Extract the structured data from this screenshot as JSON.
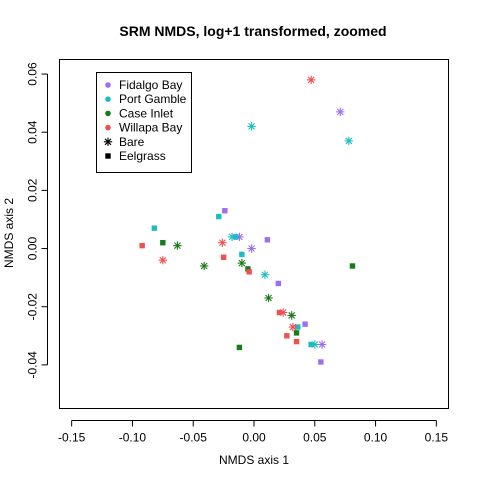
{
  "chart_data": {
    "type": "scatter",
    "title": "SRM NMDS, log+1 transformed, zoomed",
    "xlabel": "NMDS axis 1",
    "ylabel": "NMDS axis 2",
    "xlim": [
      -0.16,
      0.16
    ],
    "ylim": [
      -0.055,
      0.065
    ],
    "x_ticks": [
      -0.15,
      -0.1,
      -0.05,
      0.0,
      0.05,
      0.1,
      0.15
    ],
    "x_tick_labels": [
      "-0.15",
      "-0.10",
      "-0.05",
      "0.00",
      "0.05",
      "0.10",
      "0.15"
    ],
    "y_ticks": [
      -0.04,
      -0.02,
      0.0,
      0.02,
      0.04,
      0.06
    ],
    "y_tick_labels": [
      "-0.04",
      "-0.02",
      "0.00",
      "0.02",
      "0.04",
      "0.06"
    ],
    "grid": false,
    "legend_position": "top-left",
    "legend": {
      "sites": [
        {
          "label": "Fidalgo Bay",
          "color": "#9f6ef0"
        },
        {
          "label": "Port Gamble",
          "color": "#1cbcc4"
        },
        {
          "label": "Case Inlet",
          "color": "#197a1b"
        },
        {
          "label": "Willapa Bay",
          "color": "#ef5050"
        }
      ],
      "habitats": [
        {
          "label": "Bare",
          "marker": "asterisk"
        },
        {
          "label": "Eelgrass",
          "marker": "square"
        }
      ]
    },
    "series": [
      {
        "name": "Fidalgo Bay",
        "color": "#9f6ef0",
        "points": [
          {
            "x": 0.071,
            "y": 0.047,
            "marker": "asterisk"
          },
          {
            "x": -0.012,
            "y": 0.004,
            "marker": "asterisk"
          },
          {
            "x": -0.002,
            "y": 0.0,
            "marker": "asterisk"
          },
          {
            "x": 0.056,
            "y": -0.033,
            "marker": "asterisk"
          },
          {
            "x": -0.024,
            "y": 0.013,
            "marker": "square"
          },
          {
            "x": 0.011,
            "y": 0.003,
            "marker": "square"
          },
          {
            "x": 0.02,
            "y": -0.012,
            "marker": "square"
          },
          {
            "x": 0.042,
            "y": -0.026,
            "marker": "square"
          },
          {
            "x": 0.055,
            "y": -0.039,
            "marker": "square"
          }
        ]
      },
      {
        "name": "Port Gamble",
        "color": "#1cbcc4",
        "points": [
          {
            "x": -0.002,
            "y": 0.042,
            "marker": "asterisk"
          },
          {
            "x": 0.078,
            "y": 0.037,
            "marker": "asterisk"
          },
          {
            "x": -0.018,
            "y": 0.004,
            "marker": "asterisk"
          },
          {
            "x": 0.009,
            "y": -0.009,
            "marker": "asterisk"
          },
          {
            "x": 0.05,
            "y": -0.033,
            "marker": "asterisk"
          },
          {
            "x": -0.082,
            "y": 0.007,
            "marker": "square"
          },
          {
            "x": -0.029,
            "y": 0.011,
            "marker": "square"
          },
          {
            "x": -0.015,
            "y": 0.004,
            "marker": "square"
          },
          {
            "x": -0.01,
            "y": -0.002,
            "marker": "square"
          },
          {
            "x": 0.036,
            "y": -0.027,
            "marker": "square"
          },
          {
            "x": 0.047,
            "y": -0.033,
            "marker": "square"
          }
        ]
      },
      {
        "name": "Case Inlet",
        "color": "#197a1b",
        "points": [
          {
            "x": -0.063,
            "y": 0.001,
            "marker": "asterisk"
          },
          {
            "x": -0.041,
            "y": -0.006,
            "marker": "asterisk"
          },
          {
            "x": -0.01,
            "y": -0.005,
            "marker": "asterisk"
          },
          {
            "x": 0.012,
            "y": -0.017,
            "marker": "asterisk"
          },
          {
            "x": 0.031,
            "y": -0.023,
            "marker": "asterisk"
          },
          {
            "x": -0.075,
            "y": 0.002,
            "marker": "square"
          },
          {
            "x": -0.005,
            "y": -0.007,
            "marker": "square"
          },
          {
            "x": 0.035,
            "y": -0.029,
            "marker": "square"
          },
          {
            "x": 0.081,
            "y": -0.006,
            "marker": "square"
          },
          {
            "x": -0.012,
            "y": -0.034,
            "marker": "square"
          }
        ]
      },
      {
        "name": "Willapa Bay",
        "color": "#ef5050",
        "points": [
          {
            "x": 0.047,
            "y": 0.058,
            "marker": "asterisk"
          },
          {
            "x": -0.026,
            "y": 0.002,
            "marker": "asterisk"
          },
          {
            "x": -0.075,
            "y": -0.004,
            "marker": "asterisk"
          },
          {
            "x": 0.024,
            "y": -0.022,
            "marker": "asterisk"
          },
          {
            "x": 0.032,
            "y": -0.027,
            "marker": "asterisk"
          },
          {
            "x": -0.092,
            "y": 0.001,
            "marker": "square"
          },
          {
            "x": -0.025,
            "y": -0.003,
            "marker": "square"
          },
          {
            "x": -0.004,
            "y": -0.008,
            "marker": "square"
          },
          {
            "x": 0.021,
            "y": -0.022,
            "marker": "square"
          },
          {
            "x": 0.027,
            "y": -0.03,
            "marker": "square"
          },
          {
            "x": 0.035,
            "y": -0.032,
            "marker": "square"
          }
        ]
      }
    ]
  }
}
